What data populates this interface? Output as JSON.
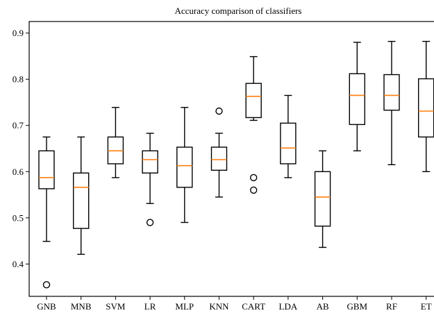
{
  "chart_data": {
    "type": "box",
    "title": "Accuracy comparison of classifiers",
    "xlabel": "",
    "ylabel": "",
    "ylim": [
      0.33,
      0.925
    ],
    "yticks": [
      0.4,
      0.5,
      0.6,
      0.7,
      0.8,
      0.9
    ],
    "ytick_labels": [
      "0.4",
      "0.5",
      "0.6",
      "0.7",
      "0.8",
      "0.9"
    ],
    "grid": false,
    "median_color": "#ff7f0e",
    "categories": [
      "GNB",
      "MNB",
      "SVM",
      "LR",
      "MLP",
      "KNN",
      "CART",
      "LDA",
      "AB",
      "GBM",
      "RF",
      "ET"
    ],
    "boxes": [
      {
        "label": "GNB",
        "whislo": 0.449,
        "q1": 0.563,
        "med": 0.587,
        "q3": 0.645,
        "whishi": 0.675,
        "fliers": [
          0.355
        ]
      },
      {
        "label": "MNB",
        "whislo": 0.421,
        "q1": 0.477,
        "med": 0.566,
        "q3": 0.597,
        "whishi": 0.675,
        "fliers": []
      },
      {
        "label": "SVM",
        "whislo": 0.587,
        "q1": 0.617,
        "med": 0.645,
        "q3": 0.675,
        "whishi": 0.739,
        "fliers": []
      },
      {
        "label": "LR",
        "whislo": 0.531,
        "q1": 0.597,
        "med": 0.626,
        "q3": 0.645,
        "whishi": 0.683,
        "fliers": [
          0.49
        ]
      },
      {
        "label": "MLP",
        "whislo": 0.49,
        "q1": 0.566,
        "med": 0.613,
        "q3": 0.653,
        "whishi": 0.739,
        "fliers": []
      },
      {
        "label": "KNN",
        "whislo": 0.545,
        "q1": 0.603,
        "med": 0.626,
        "q3": 0.653,
        "whishi": 0.683,
        "fliers": [
          0.731
        ]
      },
      {
        "label": "CART",
        "whislo": 0.711,
        "q1": 0.717,
        "med": 0.763,
        "q3": 0.791,
        "whishi": 0.849,
        "fliers": [
          0.587,
          0.56
        ]
      },
      {
        "label": "LDA",
        "whislo": 0.587,
        "q1": 0.617,
        "med": 0.651,
        "q3": 0.705,
        "whishi": 0.765,
        "fliers": []
      },
      {
        "label": "AB",
        "whislo": 0.436,
        "q1": 0.482,
        "med": 0.545,
        "q3": 0.6,
        "whishi": 0.645,
        "fliers": []
      },
      {
        "label": "GBM",
        "whislo": 0.645,
        "q1": 0.702,
        "med": 0.765,
        "q3": 0.812,
        "whishi": 0.88,
        "fliers": []
      },
      {
        "label": "RF",
        "whislo": 0.615,
        "q1": 0.733,
        "med": 0.765,
        "q3": 0.81,
        "whishi": 0.882,
        "fliers": []
      },
      {
        "label": "ET",
        "whislo": 0.6,
        "q1": 0.675,
        "med": 0.731,
        "q3": 0.801,
        "whishi": 0.882,
        "fliers": []
      }
    ]
  }
}
